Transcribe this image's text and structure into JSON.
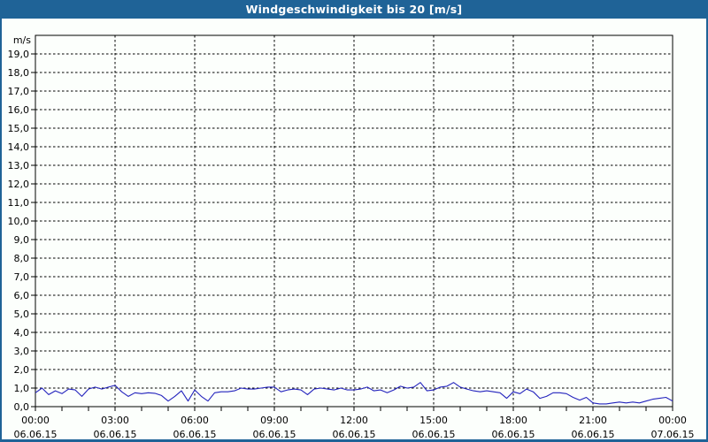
{
  "title_bar": {
    "title": "Windgeschwindigkeit bis 20 [m/s]"
  },
  "colors": {
    "frame": "#1f6397",
    "title_text": "#ffffff",
    "background": "#fcfffc",
    "plot_border": "#000000",
    "grid": "#000000",
    "axis_text": "#000000",
    "line": "#2323bd"
  },
  "chart_data": {
    "type": "line",
    "title": "Windgeschwindigkeit bis 20 [m/s]",
    "ylabel": "m/s",
    "ylim": [
      0,
      20
    ],
    "ytick_step": 1.0,
    "ytick_labels": [
      "0,0",
      "1,0",
      "2,0",
      "3,0",
      "4,0",
      "5,0",
      "6,0",
      "7,0",
      "8,0",
      "9,0",
      "10,0",
      "11,0",
      "12,0",
      "13,0",
      "14,0",
      "15,0",
      "16,0",
      "17,0",
      "18,0",
      "19,0"
    ],
    "xlim_hours": [
      0,
      24
    ],
    "xtick_minor_step_hours": 1,
    "grid": "dashed",
    "legend": "none",
    "xticks": [
      {
        "hour": 0,
        "time": "00:00",
        "date": "06.06.15"
      },
      {
        "hour": 3,
        "time": "03:00",
        "date": "06.06.15"
      },
      {
        "hour": 6,
        "time": "06:00",
        "date": "06.06.15"
      },
      {
        "hour": 9,
        "time": "09:00",
        "date": "06.06.15"
      },
      {
        "hour": 12,
        "time": "12:00",
        "date": "06.06.15"
      },
      {
        "hour": 15,
        "time": "15:00",
        "date": "06.06.15"
      },
      {
        "hour": 18,
        "time": "18:00",
        "date": "06.06.15"
      },
      {
        "hour": 21,
        "time": "21:00",
        "date": "06.06.15"
      },
      {
        "hour": 24,
        "time": "00:00",
        "date": "07.06.15"
      }
    ],
    "series": [
      {
        "name": "Windgeschwindigkeit",
        "x_hours": [
          0,
          0.25,
          0.5,
          0.75,
          1,
          1.25,
          1.5,
          1.75,
          2,
          2.25,
          2.5,
          2.75,
          3,
          3.25,
          3.5,
          3.75,
          4,
          4.25,
          4.5,
          4.75,
          5,
          5.25,
          5.5,
          5.75,
          6,
          6.25,
          6.5,
          6.75,
          7,
          7.25,
          7.5,
          7.75,
          8,
          8.25,
          8.5,
          8.75,
          9,
          9.25,
          9.5,
          9.75,
          10,
          10.25,
          10.5,
          10.75,
          11,
          11.25,
          11.5,
          11.75,
          12,
          12.25,
          12.5,
          12.75,
          13,
          13.25,
          13.5,
          13.75,
          14,
          14.25,
          14.5,
          14.75,
          15,
          15.25,
          15.5,
          15.75,
          16,
          16.25,
          16.5,
          16.75,
          17,
          17.25,
          17.5,
          17.75,
          18,
          18.25,
          18.5,
          18.75,
          19,
          19.25,
          19.5,
          19.75,
          20,
          20.25,
          20.5,
          20.75,
          21,
          21.25,
          21.5,
          21.75,
          22,
          22.25,
          22.5,
          22.75,
          23,
          23.25,
          23.5,
          23.75,
          24
        ],
        "values": [
          0.75,
          1.0,
          0.65,
          0.85,
          0.7,
          0.95,
          0.9,
          0.55,
          0.95,
          1.05,
          0.95,
          1.05,
          1.15,
          0.8,
          0.55,
          0.75,
          0.7,
          0.75,
          0.72,
          0.6,
          0.3,
          0.55,
          0.85,
          0.3,
          0.9,
          0.55,
          0.3,
          0.75,
          0.8,
          0.8,
          0.85,
          1.0,
          0.95,
          0.95,
          1.0,
          1.05,
          1.05,
          0.8,
          0.9,
          0.95,
          0.9,
          0.65,
          0.95,
          1.0,
          0.95,
          0.9,
          1.0,
          0.9,
          0.9,
          0.95,
          1.05,
          0.85,
          0.9,
          0.75,
          0.9,
          1.1,
          1.0,
          1.05,
          1.3,
          0.85,
          0.9,
          1.05,
          1.1,
          1.3,
          1.05,
          0.95,
          0.85,
          0.8,
          0.85,
          0.8,
          0.75,
          0.45,
          0.8,
          0.7,
          0.95,
          0.8,
          0.45,
          0.55,
          0.75,
          0.75,
          0.7,
          0.5,
          0.35,
          0.5,
          0.2,
          0.15,
          0.15,
          0.2,
          0.25,
          0.2,
          0.25,
          0.2,
          0.3,
          0.4,
          0.45,
          0.5,
          0.3
        ]
      }
    ]
  }
}
